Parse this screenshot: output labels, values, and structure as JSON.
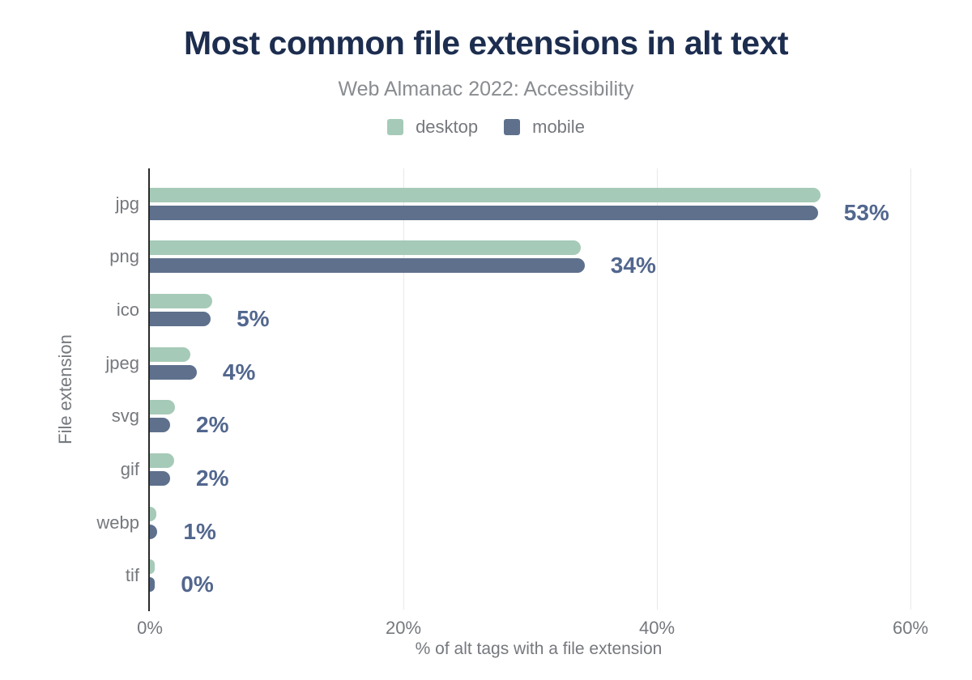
{
  "chart_data": {
    "type": "bar",
    "orientation": "horizontal",
    "title": "Most common file extensions in alt text",
    "subtitle": "Web Almanac 2022: Accessibility",
    "categories": [
      "jpg",
      "png",
      "ico",
      "jpeg",
      "svg",
      "gif",
      "webp",
      "tif"
    ],
    "series": [
      {
        "name": "desktop",
        "color": "#a6cab8",
        "values": [
          52.9,
          34.0,
          4.9,
          3.2,
          2.0,
          1.9,
          0.5,
          0.4
        ]
      },
      {
        "name": "mobile",
        "color": "#5e708c",
        "values": [
          52.7,
          34.3,
          4.8,
          3.7,
          1.6,
          1.6,
          0.6,
          0.4
        ]
      }
    ],
    "value_labels": [
      "53%",
      "34%",
      "5%",
      "4%",
      "2%",
      "2%",
      "1%",
      "0%"
    ],
    "xlabel": "% of alt tags with a file extension",
    "ylabel": "File extension",
    "x_ticks": [
      {
        "label": "0%",
        "value": 0
      },
      {
        "label": "20%",
        "value": 20
      },
      {
        "label": "40%",
        "value": 40
      },
      {
        "label": "60%",
        "value": 60
      }
    ],
    "xlim": [
      0,
      61.34
    ],
    "grid": true,
    "legend_position": "top",
    "colors": {
      "title": "#1c2d4f",
      "subtitle_gray": "#898c90",
      "text_gray": "#75787d",
      "value_label": "#52678e",
      "grid": "#e8e8e8",
      "axis": "#2a2a2a",
      "desktop": "#a6cab8",
      "mobile": "#5e708c"
    }
  }
}
